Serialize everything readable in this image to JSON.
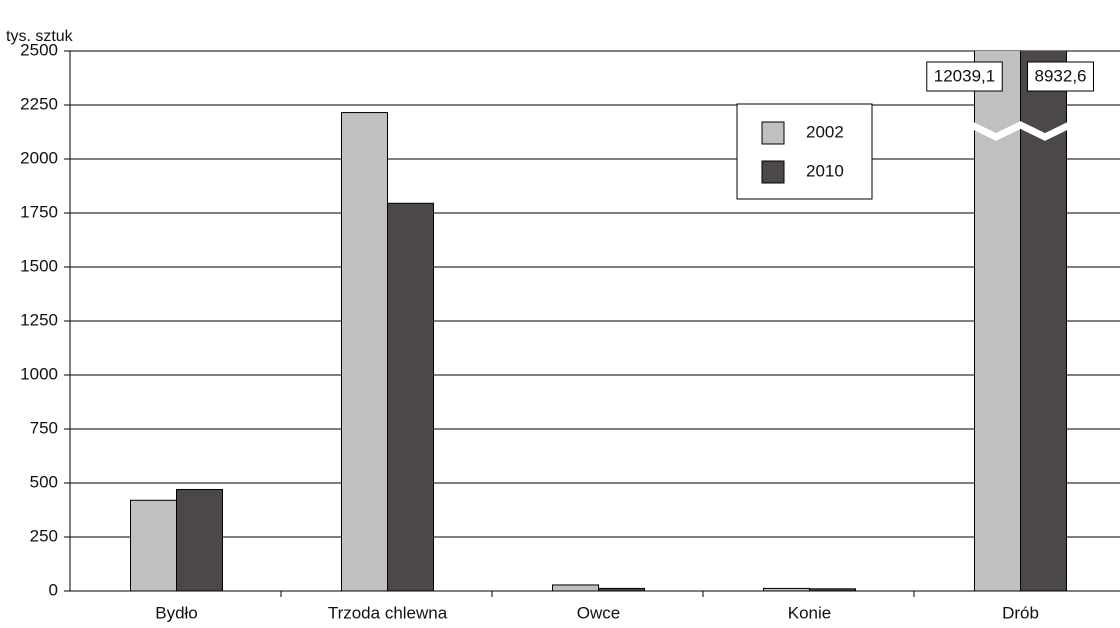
{
  "chart_data": {
    "type": "bar",
    "y_axis_label": "tys. sztuk",
    "categories": [
      "Bydło",
      "Trzoda chlewna",
      "Owce",
      "Konie",
      "Drób"
    ],
    "series": [
      {
        "name": "2002",
        "color": "#c0c0c0",
        "values": [
          420,
          2215,
          28,
          12,
          12039.1
        ],
        "value_labels": [
          null,
          null,
          null,
          null,
          "12039,1"
        ]
      },
      {
        "name": "2010",
        "color": "#4d4848",
        "values": [
          470,
          1795,
          12,
          10,
          8932.6
        ],
        "value_labels": [
          null,
          null,
          null,
          null,
          "8932,6"
        ]
      }
    ],
    "ylim": [
      0,
      2500
    ],
    "yticks": [
      0,
      250,
      500,
      750,
      1000,
      1250,
      1500,
      1750,
      2000,
      2250,
      2500
    ],
    "grid": true,
    "legend": "upper right"
  }
}
